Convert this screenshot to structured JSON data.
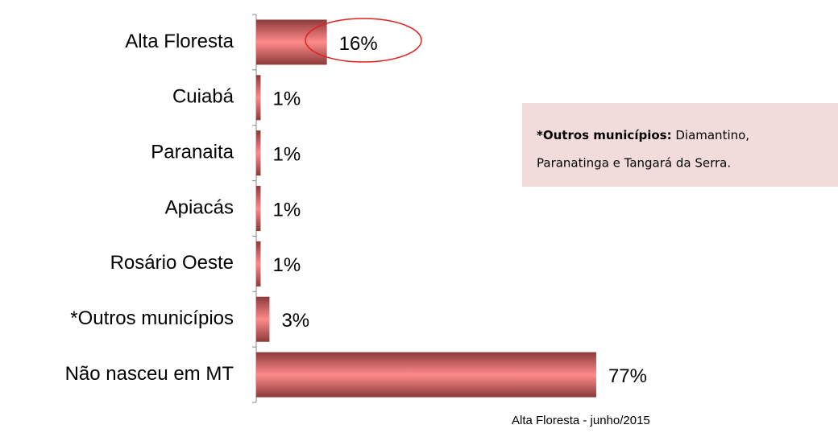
{
  "chart_data": {
    "type": "bar",
    "categories": [
      "Alta Floresta",
      "Cuiabá",
      "Paranaita",
      "Apiacás",
      "Rosário Oeste",
      "*Outros municípios",
      "Não nasceu em MT"
    ],
    "values": [
      16,
      1,
      1,
      1,
      1,
      3,
      77
    ],
    "value_labels": [
      "16%",
      "1%",
      "1%",
      "1%",
      "1%",
      "3%",
      "77%"
    ],
    "color": "#ff8080",
    "annotation": {
      "bold": "*Outros municípios:",
      "text_line1": " Diamantino,",
      "text_line2": "Paranatinga e Tangará da Serra."
    },
    "footer": "Alta Floresta -  junho/2015"
  }
}
